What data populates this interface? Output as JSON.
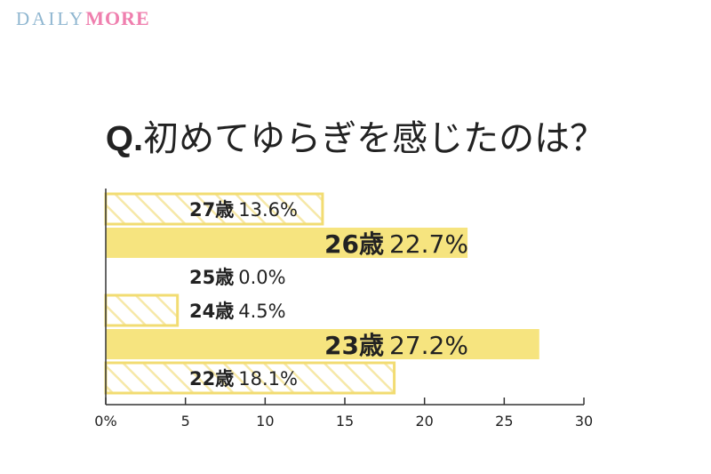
{
  "brand": {
    "name_part1": "DAILY",
    "name_part2": "MORE"
  },
  "question": {
    "prefix": "Q.",
    "text": "初めてゆらぎを感じたのは？"
  },
  "colors": {
    "bar_solid": "#f6e47f",
    "bar_hatch_stroke": "#f2dc72",
    "bar_hatch_line": "#f6e8a8",
    "axis": "#333333",
    "text": "#222222"
  },
  "chart_data": {
    "type": "bar",
    "orientation": "horizontal",
    "title": "初めてゆらぎを感じたのは？",
    "xlim": [
      0,
      30
    ],
    "xticks": [
      "0%",
      "5",
      "10",
      "15",
      "20",
      "25",
      "30"
    ],
    "categories": [
      "27歳",
      "26歳",
      "25歳",
      "24歳",
      "23歳",
      "22歳"
    ],
    "values": [
      13.6,
      22.7,
      0.0,
      4.5,
      27.2,
      18.1
    ],
    "value_labels": [
      "13.6%",
      "22.7%",
      "0.0%",
      "4.5%",
      "27.2%",
      "18.1%"
    ],
    "styles": [
      "hatched",
      "solid",
      "hatched",
      "hatched",
      "solid",
      "hatched"
    ],
    "emphasis": [
      false,
      true,
      false,
      false,
      true,
      false
    ]
  }
}
